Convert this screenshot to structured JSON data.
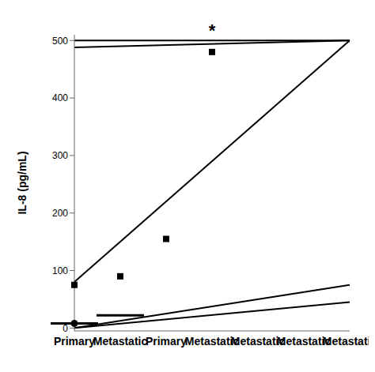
{
  "chart_data": {
    "type": "box",
    "categories": [
      "Primary",
      "Metastatic"
    ],
    "ylabel": "IL-8 (pg/mL)",
    "ylim": [
      -5,
      510
    ],
    "yticks": [
      0,
      100,
      200,
      300,
      400,
      500
    ],
    "color": "#000000",
    "groups": [
      {
        "median": 8,
        "whisker_low": 0,
        "whisker_high": 75,
        "points": [
          8
        ],
        "marker": "circle"
      },
      {
        "median": 22,
        "whisker_low": 0,
        "whisker_high": 45,
        "points": [
          75,
          90,
          155,
          480
        ],
        "marker": "square"
      }
    ],
    "bracket": {
      "y": 500,
      "left_low": 80,
      "right_low": 488,
      "label": "*"
    }
  }
}
